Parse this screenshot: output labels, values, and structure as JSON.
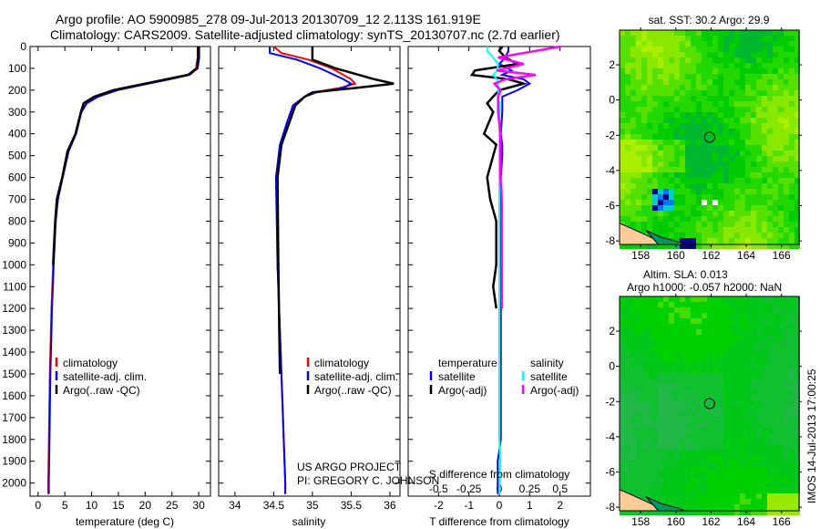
{
  "title_line1": "Argo profile: AO 5900985_278 09-Jul-2013 20130709_12 2.113S 161.919E",
  "title_line2": "Climatology: CARS2009. Satellite-adjusted climatology: synTS_20130707.nc (2.7d earlier)",
  "colors": {
    "climatology": "#ff0000",
    "satellite": "#0000ff",
    "argo": "#000000",
    "sal_satellite": "#00ffff",
    "sal_argo": "#ff00ff",
    "land": "#ffcc99"
  },
  "chart_data": [
    {
      "type": "line",
      "xlabel": "temperature (deg C)",
      "ylabel": "",
      "xlim": [
        -1.5,
        32.2
      ],
      "ylim": [
        2060,
        0
      ],
      "xticks": [
        0,
        5,
        10,
        15,
        20,
        25,
        30
      ],
      "yticks": [
        0,
        100,
        200,
        300,
        400,
        500,
        600,
        700,
        800,
        900,
        1000,
        1100,
        1200,
        1300,
        1400,
        1500,
        1600,
        1700,
        1800,
        1900,
        2000
      ],
      "legend": [
        "climatology",
        "satellite-adj. clim.",
        "Argo(..raw -QC)"
      ],
      "depth": [
        0,
        50,
        100,
        130,
        150,
        170,
        200,
        230,
        260,
        300,
        400,
        480,
        600,
        700,
        800,
        1000,
        1200,
        1500,
        2000,
        2050
      ],
      "series": [
        {
          "name": "climatology",
          "values": [
            29.8,
            29.8,
            29.5,
            28,
            24.5,
            20.5,
            14.5,
            11,
            9,
            8,
            7,
            5.6,
            4.5,
            3.6,
            3.2,
            2.8,
            2.5,
            2.2,
            1.9,
            1.9
          ]
        },
        {
          "name": "satellite-adj. clim.",
          "values": [
            30.1,
            30.1,
            29.8,
            28.3,
            24.6,
            20.6,
            14.8,
            11.2,
            9.1,
            8.1,
            7.1,
            5.7,
            4.6,
            3.7,
            3.3,
            2.9,
            2.6,
            2.3,
            2.0,
            2.0
          ]
        },
        {
          "name": "Argo(..raw -QC)",
          "values": [
            29.9,
            29.9,
            29.7,
            28.0,
            24.0,
            20.0,
            14.0,
            10.5,
            8.5,
            8.0,
            7.0,
            5.5,
            4.5,
            3.5,
            3.2,
            2.8,
            null,
            null,
            null,
            null
          ]
        }
      ]
    },
    {
      "type": "line",
      "xlabel": "salinity",
      "xlim": [
        33.79,
        36.13
      ],
      "ylim": [
        2060,
        0
      ],
      "xticks": [
        34,
        34.5,
        35,
        35.5,
        36
      ],
      "legend": [
        "climatology",
        "satellite-adj. clim.",
        "Argo(..raw -QC)"
      ],
      "depth": [
        0,
        30,
        60,
        100,
        150,
        170,
        190,
        210,
        230,
        270,
        350,
        450,
        600,
        1000,
        1500,
        2000,
        2050
      ],
      "series": [
        {
          "name": "climatology",
          "values": [
            34.5,
            34.6,
            34.95,
            35.25,
            35.5,
            35.55,
            35.35,
            35.0,
            34.9,
            34.75,
            34.68,
            34.6,
            34.54,
            34.55,
            34.6,
            34.65,
            34.65
          ]
        },
        {
          "name": "satellite-adj. clim.",
          "values": [
            34.45,
            34.45,
            34.8,
            35.1,
            35.4,
            35.5,
            35.4,
            35.05,
            34.9,
            34.75,
            34.67,
            34.58,
            34.53,
            34.55,
            34.6,
            34.65,
            34.65
          ]
        },
        {
          "name": "Argo(..raw -QC)",
          "values": [
            35.0,
            35.0,
            35.0,
            35.3,
            35.8,
            36.05,
            35.55,
            35.0,
            34.9,
            34.78,
            34.7,
            34.6,
            34.55,
            34.56,
            34.58,
            null,
            null
          ]
        }
      ]
    },
    {
      "type": "line",
      "xlabel": "T difference from climatology",
      "xlabel2": "S difference from climatology",
      "xlim": [
        -3,
        3
      ],
      "ylim": [
        2060,
        0
      ],
      "xticks": [
        -2,
        -1,
        0,
        1,
        2
      ],
      "xticks2": [
        -0.5,
        -0.25,
        0,
        0.25,
        0.5
      ],
      "xtick_labels2": [
        "-0.5",
        "-0.25",
        "0",
        "0.25",
        "0.5"
      ],
      "legend_headers": [
        "temperature",
        "salinity"
      ],
      "legend": [
        "satellite",
        "Argo(-adj)",
        "satellite",
        "Argo(-adj)"
      ],
      "depth": [
        0,
        20,
        50,
        80,
        110,
        130,
        150,
        170,
        200,
        230,
        260,
        300,
        400,
        450,
        500,
        600,
        700,
        800,
        1000,
        1100,
        1200,
        1500,
        1800,
        1900,
        2000,
        2050
      ],
      "series": [
        {
          "name": "T satellite",
          "values": [
            0.3,
            0.3,
            0.2,
            0.0,
            0.4,
            0.1,
            0.8,
            1.0,
            0.6,
            0.1,
            0.1,
            0.1,
            0.05,
            0.1,
            0.1,
            0.05,
            0.05,
            0.05,
            0.05,
            0.05,
            0.05,
            0.05,
            0.05,
            -0.05,
            -0.05,
            -0.05
          ]
        },
        {
          "name": "T Argo(-adj)",
          "values": [
            0.1,
            0.0,
            0.2,
            0.6,
            -0.8,
            -0.9,
            0.3,
            0.8,
            0.0,
            -0.2,
            -0.4,
            -0.2,
            -0.5,
            -0.1,
            -0.2,
            -0.4,
            -0.3,
            -0.1,
            -0.1,
            -0.2,
            -0.1,
            null,
            null,
            null,
            null,
            null
          ]
        },
        {
          "name": "S satellite",
          "values": [
            -0.1,
            -0.1,
            -0.05,
            -0.01,
            -0.02,
            -0.05,
            -0.02,
            -0.01,
            -0.01,
            -0.01,
            0.0,
            0.0,
            0.0,
            0.0,
            0.0,
            0.0,
            0.0,
            0.0,
            0.0,
            0.0,
            0.0,
            0.0,
            0.0,
            0.01,
            0.0,
            0.0
          ]
        },
        {
          "name": "S Argo(-adj)",
          "values": [
            0.5,
            0.3,
            -0.01,
            0.2,
            -0.02,
            0.3,
            0.05,
            -0.04,
            0.01,
            -0.01,
            -0.01,
            -0.01,
            0.01,
            0.01,
            0.01,
            0.01,
            0.02,
            0.02,
            0.02,
            0.02,
            0.02,
            null,
            null,
            null,
            null,
            null
          ]
        }
      ]
    },
    {
      "type": "heatmap",
      "title": "sat. SST: 30.2 Argo: 29.9",
      "xlim": [
        156.8,
        167
      ],
      "ylim": [
        -8.2,
        3.97
      ],
      "xticks": [
        158,
        160,
        162,
        164,
        166
      ],
      "yticks": [
        2,
        0,
        -2,
        -4,
        -6,
        -8
      ],
      "marker": {
        "lon": 161.919,
        "lat": -2.113
      },
      "palette": [
        "#00b830",
        "#00cc00",
        "#22d800",
        "#55e000",
        "#88e800",
        "#aaee00",
        "#00cccc",
        "#0077ee",
        "#000088"
      ]
    },
    {
      "type": "heatmap",
      "title_line1": "Altim. SLA: 0.013",
      "title_line2": "Argo h1000: -0.057 h2000: NaN",
      "xlim": [
        156.8,
        167
      ],
      "ylim": [
        -8.2,
        3.97
      ],
      "xticks": [
        158,
        160,
        162,
        164,
        166
      ],
      "yticks": [
        2,
        0,
        -2,
        -4,
        -6,
        -8
      ],
      "marker": {
        "lon": 161.919,
        "lat": -2.113
      },
      "palette": [
        "#22b848",
        "#11c030",
        "#00c818",
        "#00d000",
        "#44dc00",
        "#99e800"
      ]
    }
  ],
  "credits": {
    "line1": "US ARGO PROJECT",
    "line2": "PI: GREGORY C. JOHNSON"
  },
  "timestamp": "IMOS 14-Jul-2013 17:00:25"
}
